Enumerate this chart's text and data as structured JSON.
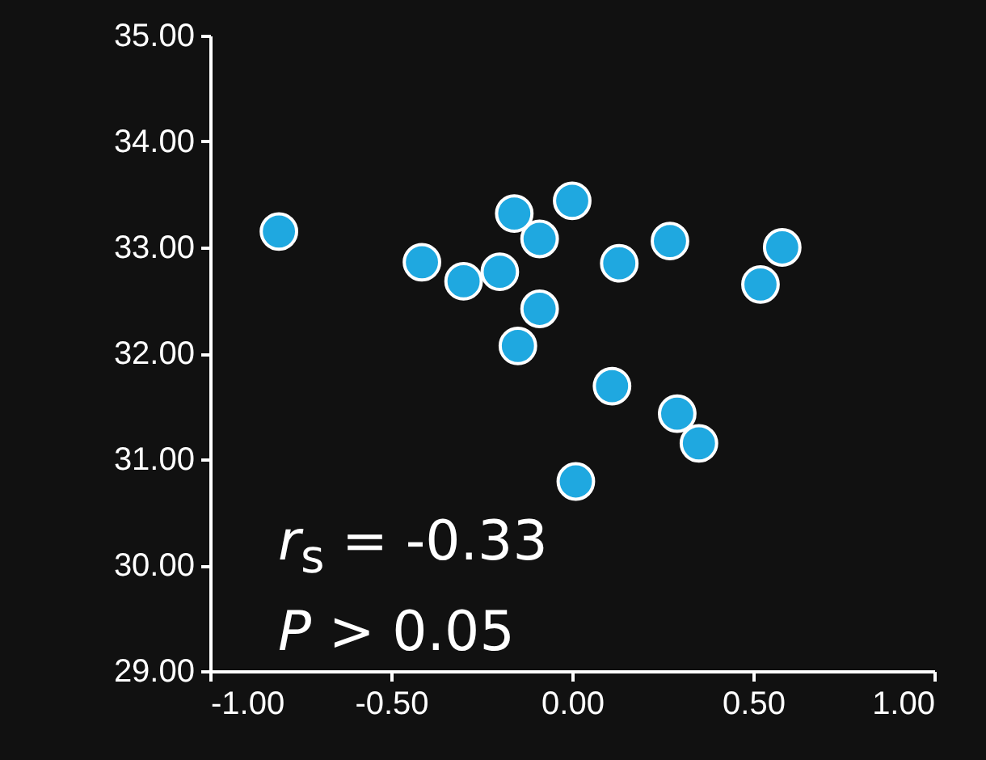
{
  "chart_data": {
    "type": "scatter",
    "x": [
      -0.81,
      -0.415,
      -0.3,
      -0.2,
      -0.16,
      -0.09,
      -0.15,
      -0.09,
      0.0,
      0.13,
      0.27,
      0.11,
      0.29,
      0.35,
      0.01,
      0.52,
      0.58
    ],
    "values": [
      33.15,
      32.86,
      32.68,
      32.77,
      33.32,
      33.08,
      32.07,
      32.42,
      33.44,
      32.85,
      33.06,
      31.69,
      31.43,
      31.15,
      30.79,
      32.65,
      33.0
    ],
    "color": "#1fa8e0",
    "marker": "circle",
    "xlim": [
      -1,
      1
    ],
    "xticks": [
      {
        "value": -1,
        "label": "-1.00"
      },
      {
        "value": -0.5,
        "label": "-0.50"
      },
      {
        "value": 0,
        "label": "0.00"
      },
      {
        "value": 0.5,
        "label": "0.50"
      },
      {
        "value": 1,
        "label": "1.00"
      }
    ],
    "ylim": [
      29,
      35
    ],
    "yticks": [
      {
        "value": 29,
        "label": "29.00"
      },
      {
        "value": 30,
        "label": "30.00"
      },
      {
        "value": 31,
        "label": "31.00"
      },
      {
        "value": 32,
        "label": "32.00"
      },
      {
        "value": 33,
        "label": "33.00"
      },
      {
        "value": 34,
        "label": "34.00"
      },
      {
        "value": 35,
        "label": "35.00"
      }
    ],
    "annotations": [
      "r$_{s}$ = -0.33",
      "P > 0.05"
    ]
  }
}
